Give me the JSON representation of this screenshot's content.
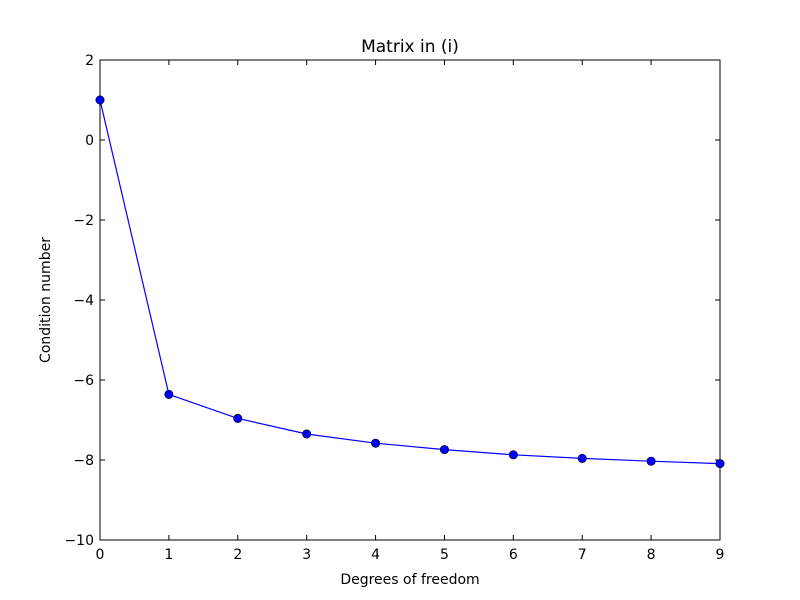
{
  "chart_data": {
    "type": "line",
    "title": "Matrix in (i)",
    "xlabel": "Degrees of freedom",
    "ylabel": "Condition number",
    "xlim": [
      0,
      9
    ],
    "ylim": [
      -10,
      2
    ],
    "xticks": [
      0,
      1,
      2,
      3,
      4,
      5,
      6,
      7,
      8,
      9
    ],
    "yticks": [
      2,
      0,
      -2,
      -4,
      -6,
      -8,
      -10
    ],
    "ytick_labels": [
      "2",
      "0",
      "−2",
      "−4",
      "−6",
      "−8",
      "−10"
    ],
    "grid": false,
    "series": [
      {
        "x": [
          0,
          1,
          2,
          3,
          4,
          5,
          6,
          7,
          8,
          9
        ],
        "y": [
          1.0,
          -6.36,
          -6.96,
          -7.35,
          -7.58,
          -7.74,
          -7.87,
          -7.96,
          -8.03,
          -8.09
        ],
        "color": "#0000ff",
        "marker": "circle"
      }
    ]
  }
}
